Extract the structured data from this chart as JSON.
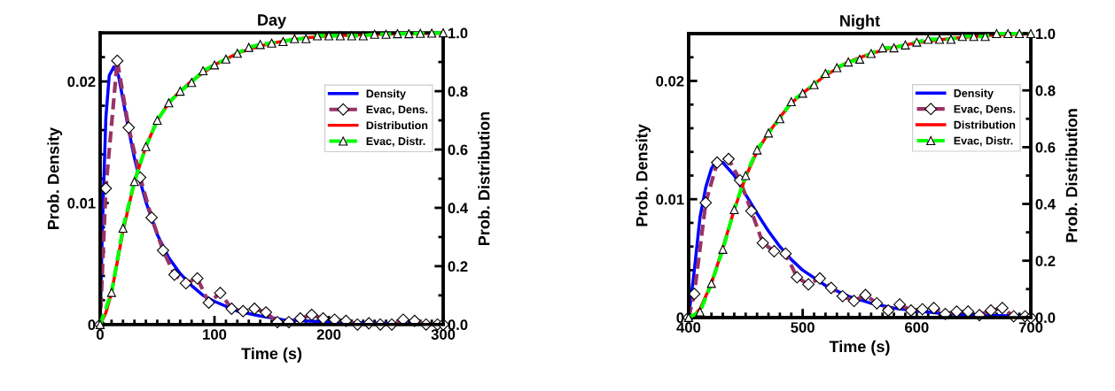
{
  "chart_data": [
    {
      "type": "line",
      "title": "Day",
      "xlabel": "Time (s)",
      "ylabel": "Prob. Density",
      "y2label": "Prob. Distribution",
      "xlim": [
        0,
        300
      ],
      "xticks": [
        0,
        100,
        200,
        300
      ],
      "ylim": [
        0,
        0.024
      ],
      "yticks": [
        0,
        0.01,
        0.02
      ],
      "y2lim": [
        0,
        1
      ],
      "y2ticks": [
        {
          "value": 0,
          "label": "0.0"
        },
        {
          "value": 0.2,
          "label": "0.2"
        },
        {
          "value": 0.4,
          "label": "0.4"
        },
        {
          "value": 0.6,
          "label": "0.6"
        },
        {
          "value": 0.8,
          "label": "0.8"
        },
        {
          "value": 1,
          "label": "1.0"
        }
      ],
      "grid": false,
      "legend": "top right",
      "series": [
        {
          "name": "Density",
          "color": "#0000ff",
          "marker": "none",
          "line_style": "solid",
          "x": [
            0,
            2,
            5,
            8,
            12,
            16,
            20,
            25,
            30,
            35,
            40,
            50,
            60,
            70,
            80,
            90,
            100,
            120,
            140,
            160,
            180,
            200,
            250,
            300
          ],
          "values": [
            0,
            0.008,
            0.017,
            0.0205,
            0.0212,
            0.0205,
            0.0185,
            0.016,
            0.0137,
            0.0118,
            0.0101,
            0.0074,
            0.0055,
            0.0042,
            0.0032,
            0.0024,
            0.0019,
            0.0011,
            0.0007,
            0.0004,
            0.0003,
            0.0002,
            0.0001,
            0
          ]
        },
        {
          "name": "Evac, Dens.",
          "color": "#993366",
          "marker": "diamond",
          "line_style": "dashed",
          "x": [
            0,
            5,
            15,
            25,
            35,
            45,
            55,
            65,
            75,
            85,
            95,
            105,
            115,
            125,
            135,
            145,
            155,
            165,
            175,
            185,
            195,
            205,
            215,
            225,
            235,
            245,
            255,
            265,
            275,
            285,
            295,
            300
          ],
          "values": [
            0,
            0.0112,
            0.0217,
            0.0162,
            0.0121,
            0.0088,
            0.0061,
            0.0041,
            0.0034,
            0.0038,
            0.0018,
            0.0026,
            0.0013,
            0.0011,
            0.0013,
            0.001,
            0.0002,
            0.0002,
            0.0005,
            0.0008,
            0.0005,
            0.0004,
            0.0003,
            0,
            0.0001,
            0,
            0,
            0.0004,
            0.0003,
            0,
            0,
            0
          ]
        },
        {
          "name": "Distribution",
          "color": "#ff0000",
          "line_style": "solid",
          "axis": "y2",
          "x": [
            0,
            5,
            10,
            20,
            30,
            40,
            50,
            60,
            70,
            80,
            100,
            120,
            140,
            160,
            180,
            200,
            250,
            300
          ],
          "values": [
            0,
            0.04,
            0.11,
            0.32,
            0.49,
            0.61,
            0.7,
            0.76,
            0.8,
            0.835,
            0.89,
            0.93,
            0.955,
            0.972,
            0.983,
            0.99,
            0.996,
            0.999
          ]
        },
        {
          "name": "Evac, Distr.",
          "color": "#00ff00",
          "marker": "triangle",
          "line_style": "dashed",
          "axis": "y2",
          "x": [
            0,
            10,
            20,
            30,
            40,
            50,
            60,
            70,
            80,
            90,
            100,
            110,
            120,
            130,
            140,
            150,
            160,
            170,
            180,
            190,
            200,
            210,
            220,
            230,
            240,
            250,
            260,
            270,
            280,
            290,
            300
          ],
          "values": [
            0,
            0.11,
            0.33,
            0.49,
            0.61,
            0.7,
            0.76,
            0.8,
            0.83,
            0.87,
            0.89,
            0.91,
            0.93,
            0.95,
            0.96,
            0.965,
            0.97,
            0.98,
            0.98,
            0.99,
            0.99,
            0.99,
            0.99,
            0.99,
            0.995,
            0.995,
            0.997,
            0.997,
            0.998,
            0.999,
            1.0
          ]
        }
      ]
    },
    {
      "type": "line",
      "title": "Night",
      "xlabel": "Time (s)",
      "ylabel": "Prob. Density",
      "y2label": "Prob. Distribution",
      "xlim": [
        400,
        700
      ],
      "xticks": [
        400,
        500,
        600,
        700
      ],
      "ylim": [
        0,
        0.024
      ],
      "yticks": [
        0,
        0.01,
        0.02
      ],
      "y2lim": [
        0,
        1
      ],
      "y2ticks": [
        {
          "value": 0,
          "label": "0.0"
        },
        {
          "value": 0.2,
          "label": "0.2"
        },
        {
          "value": 0.4,
          "label": "0.4"
        },
        {
          "value": 0.6,
          "label": "0.6"
        },
        {
          "value": 0.8,
          "label": "0.8"
        },
        {
          "value": 1,
          "label": "1.0"
        }
      ],
      "grid": false,
      "legend": "top right",
      "series": [
        {
          "name": "Density",
          "color": "#0000ff",
          "marker": "none",
          "line_style": "solid",
          "x": [
            400,
            405,
            410,
            415,
            420,
            424,
            430,
            440,
            450,
            460,
            470,
            480,
            490,
            500,
            520,
            540,
            560,
            580,
            600,
            620,
            650,
            700
          ],
          "values": [
            0,
            0.004,
            0.0085,
            0.011,
            0.0126,
            0.0132,
            0.0131,
            0.012,
            0.0104,
            0.0088,
            0.0073,
            0.006,
            0.0049,
            0.004,
            0.0027,
            0.0018,
            0.0012,
            0.0008,
            0.00055,
            0.00037,
            0.0002,
            0.0001
          ]
        },
        {
          "name": "Evac, Dens.",
          "color": "#993366",
          "marker": "diamond",
          "line_style": "dashed",
          "x": [
            400,
            405,
            415,
            425,
            435,
            445,
            455,
            465,
            475,
            485,
            495,
            505,
            515,
            525,
            535,
            545,
            555,
            565,
            575,
            585,
            595,
            605,
            615,
            625,
            635,
            645,
            655,
            665,
            675,
            685,
            695,
            700
          ],
          "values": [
            0,
            0.002,
            0.0097,
            0.0131,
            0.0134,
            0.0116,
            0.009,
            0.0063,
            0.0056,
            0.0054,
            0.0034,
            0.0028,
            0.0033,
            0.0025,
            0.0018,
            0.0014,
            0.0019,
            0.0012,
            0.0006,
            0.0011,
            0.0006,
            0.0007,
            0.0008,
            0.0003,
            0.0005,
            0.0005,
            0.0002,
            0.0006,
            0.0008,
            0.0001,
            0.0001,
            0
          ]
        },
        {
          "name": "Distribution",
          "color": "#ff0000",
          "line_style": "solid",
          "axis": "y2",
          "x": [
            400,
            405,
            410,
            420,
            430,
            440,
            450,
            460,
            470,
            480,
            490,
            500,
            520,
            540,
            560,
            580,
            600,
            630,
            660,
            700
          ],
          "values": [
            0,
            0.008,
            0.03,
            0.12,
            0.245,
            0.38,
            0.495,
            0.585,
            0.65,
            0.705,
            0.755,
            0.79,
            0.853,
            0.9,
            0.93,
            0.952,
            0.968,
            0.983,
            0.993,
            1.0
          ]
        },
        {
          "name": "Evac, Distr.",
          "color": "#00ff00",
          "marker": "triangle",
          "line_style": "dashed",
          "axis": "y2",
          "x": [
            400,
            410,
            420,
            430,
            440,
            450,
            460,
            470,
            480,
            490,
            500,
            510,
            520,
            530,
            540,
            550,
            560,
            570,
            580,
            590,
            600,
            610,
            620,
            630,
            640,
            650,
            660,
            670,
            680,
            690,
            700
          ],
          "values": [
            0,
            0.02,
            0.12,
            0.24,
            0.38,
            0.5,
            0.59,
            0.65,
            0.7,
            0.76,
            0.79,
            0.82,
            0.86,
            0.88,
            0.9,
            0.91,
            0.93,
            0.95,
            0.95,
            0.96,
            0.97,
            0.98,
            0.98,
            0.98,
            0.99,
            0.99,
            0.99,
            1.0,
            1.0,
            1.0,
            1.0
          ]
        }
      ]
    }
  ]
}
